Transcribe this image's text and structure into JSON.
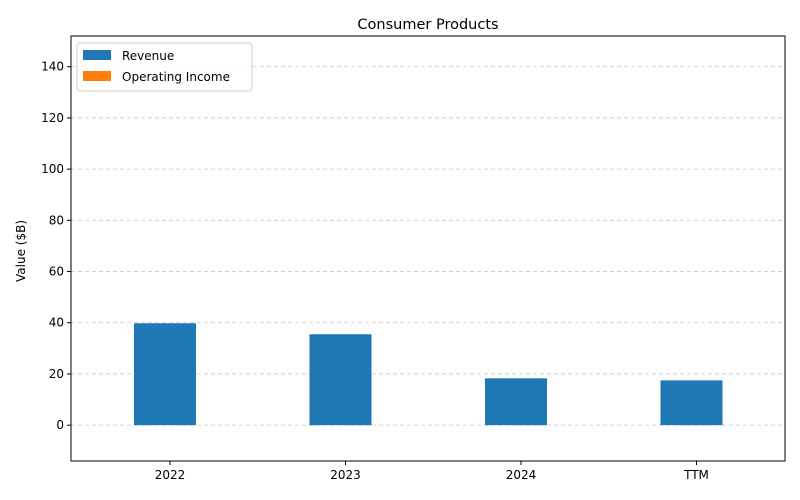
{
  "chart_data": {
    "type": "bar",
    "title": "Consumer Products",
    "xlabel": "",
    "ylabel": "Value ($B)",
    "categories": [
      "2022",
      "2023",
      "2024",
      "TTM"
    ],
    "series": [
      {
        "name": "Revenue",
        "color": "#1f77b4",
        "values": [
          39.8,
          35.5,
          18.3,
          17.5
        ]
      },
      {
        "name": "Operating Income",
        "color": "#ff7f0e",
        "values": [
          0,
          0,
          0,
          0
        ]
      }
    ],
    "yticks": [
      0,
      20,
      40,
      60,
      80,
      100,
      120,
      140
    ],
    "ylim": [
      -14,
      152
    ],
    "grid": true,
    "legend_position": "top-left"
  }
}
